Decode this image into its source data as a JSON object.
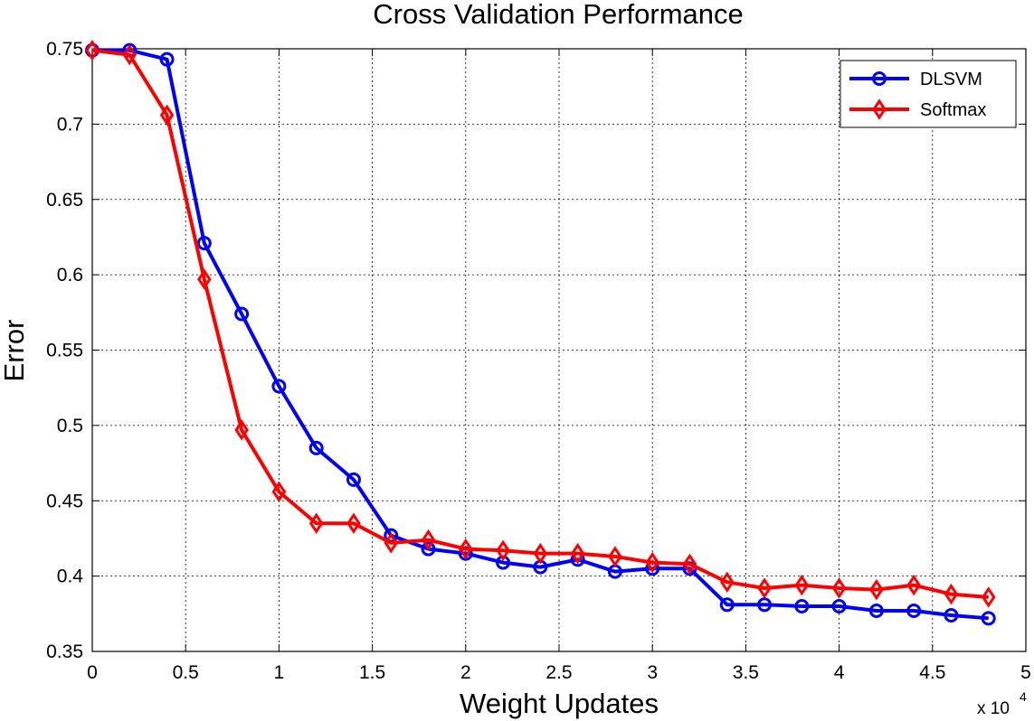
{
  "chart_data": {
    "type": "line",
    "title": "Cross Validation Performance",
    "xlabel": "Weight Updates",
    "ylabel": "Error",
    "x_multiplier": "x 10",
    "x_multiplier_exponent": "4",
    "xlim": [
      0,
      5
    ],
    "ylim": [
      0.35,
      0.75
    ],
    "xticks": [
      0,
      0.5,
      1,
      1.5,
      2,
      2.5,
      3,
      3.5,
      4,
      4.5,
      5
    ],
    "xtick_labels": [
      "0",
      "0.5",
      "1",
      "1.5",
      "2",
      "2.5",
      "3",
      "3.5",
      "4",
      "4.5",
      "5"
    ],
    "yticks": [
      0.35,
      0.4,
      0.45,
      0.5,
      0.55,
      0.6,
      0.65,
      0.7,
      0.75
    ],
    "ytick_labels": [
      "0.35",
      "0.4",
      "0.45",
      "0.5",
      "0.55",
      "0.6",
      "0.65",
      "0.7",
      "0.75"
    ],
    "grid": true,
    "legend_position": "top-right",
    "x": [
      0,
      0.2,
      0.4,
      0.6,
      0.8,
      1.0,
      1.2,
      1.4,
      1.6,
      1.8,
      2.0,
      2.2,
      2.4,
      2.6,
      2.8,
      3.0,
      3.2,
      3.4,
      3.6,
      3.8,
      4.0,
      4.2,
      4.4,
      4.6,
      4.8
    ],
    "series": [
      {
        "name": "DLSVM",
        "color": "#0000ff",
        "marker": "circle",
        "values": [
          0.749,
          0.749,
          0.743,
          0.621,
          0.574,
          0.526,
          0.485,
          0.464,
          0.427,
          0.418,
          0.415,
          0.409,
          0.406,
          0.411,
          0.403,
          0.405,
          0.405,
          0.381,
          0.381,
          0.38,
          0.38,
          0.377,
          0.377,
          0.374,
          0.372
        ]
      },
      {
        "name": "Softmax",
        "color": "#ff0000",
        "marker": "diamond",
        "values": [
          0.749,
          0.746,
          0.706,
          0.597,
          0.497,
          0.456,
          0.435,
          0.435,
          0.422,
          0.424,
          0.418,
          0.417,
          0.415,
          0.415,
          0.413,
          0.409,
          0.408,
          0.396,
          0.392,
          0.394,
          0.392,
          0.391,
          0.394,
          0.388,
          0.386
        ]
      }
    ]
  }
}
